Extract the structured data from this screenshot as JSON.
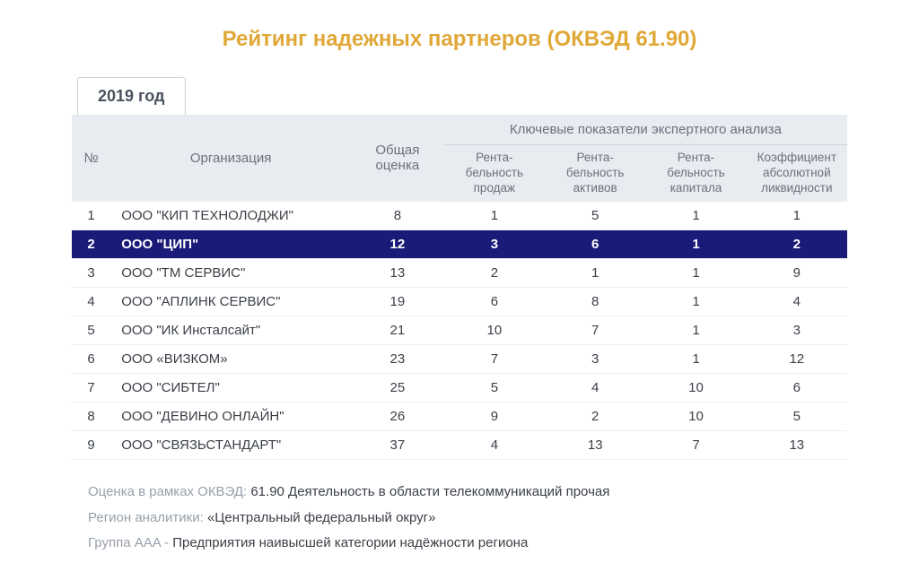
{
  "colors": {
    "title": "#e0a838",
    "tab_text": "#4a5260",
    "tab_border": "#d0d0d0",
    "header_bg": "#e8ebf0",
    "header_text": "#6a7280",
    "header_border": "#cfd4dd",
    "body_text": "#3a3f47",
    "row_border": "#eceef1",
    "highlight_bg": "#1a1a78",
    "highlight_text": "#ffffff",
    "footer_label": "#98a0aa",
    "footer_value": "#3a3f47"
  },
  "title": "Рейтинг надежных партнеров (ОКВЭД 61.90)",
  "tab": "2019 год",
  "table": {
    "type": "table",
    "header": {
      "num": "№",
      "org": "Организация",
      "score": "Общая оценка",
      "group": "Ключевые показатели экспертного анализа",
      "sub": [
        "Рента-\nбельность\nпродаж",
        "Рента-\nбельность\nактивов",
        "Рента-\nбельность\nкапитала",
        "Коэффициент\nабсолютной\nликвидности"
      ],
      "col_widths_pct": [
        5,
        31,
        12,
        13,
        13,
        13,
        13
      ]
    },
    "highlight_row": 1,
    "rows": [
      {
        "n": "1",
        "org": "ООО \"КИП ТЕХНОЛОДЖИ\"",
        "score": "8",
        "k": [
          "1",
          "5",
          "1",
          "1"
        ]
      },
      {
        "n": "2",
        "org": "ООО \"ЦИП\"",
        "score": "12",
        "k": [
          "3",
          "6",
          "1",
          "2"
        ]
      },
      {
        "n": "3",
        "org": "ООО \"ТМ СЕРВИС\"",
        "score": "13",
        "k": [
          "2",
          "1",
          "1",
          "9"
        ]
      },
      {
        "n": "4",
        "org": "ООО \"АПЛИНК СЕРВИС\"",
        "score": "19",
        "k": [
          "6",
          "8",
          "1",
          "4"
        ]
      },
      {
        "n": "5",
        "org": "ООО \"ИК Инсталсайт\"",
        "score": "21",
        "k": [
          "10",
          "7",
          "1",
          "3"
        ]
      },
      {
        "n": "6",
        "org": "ООО «ВИЗКОМ»",
        "score": "23",
        "k": [
          "7",
          "3",
          "1",
          "12"
        ]
      },
      {
        "n": "7",
        "org": "ООО \"СИБТЕЛ\"",
        "score": "25",
        "k": [
          "5",
          "4",
          "10",
          "6"
        ]
      },
      {
        "n": "8",
        "org": "ООО \"ДЕВИНО ОНЛАЙН\"",
        "score": "26",
        "k": [
          "9",
          "2",
          "10",
          "5"
        ]
      },
      {
        "n": "9",
        "org": "ООО \"СВЯЗЬСТАНДАРТ\"",
        "score": "37",
        "k": [
          "4",
          "13",
          "7",
          "13"
        ]
      }
    ]
  },
  "footer": [
    {
      "label": "Оценка в рамках ОКВЭД: ",
      "value": "61.90 Деятельность в области телекоммуникаций прочая"
    },
    {
      "label": "Регион аналитики: ",
      "value": "«Центральный федеральный округ»"
    },
    {
      "label": "Группа AAA - ",
      "value": "Предприятия наивысшей категории надёжности региона"
    }
  ]
}
